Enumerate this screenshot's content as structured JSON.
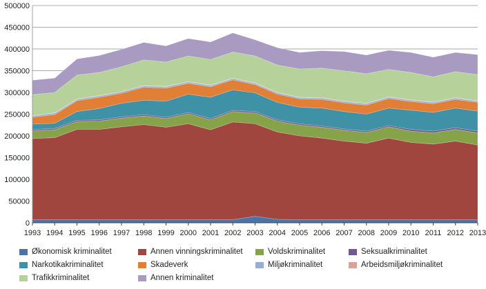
{
  "chart_data": {
    "type": "area",
    "stacked": true,
    "title": "",
    "xlabel": "",
    "ylabel": "",
    "ylim": [
      0,
      500000
    ],
    "y_ticks": [
      "0",
      "50000",
      "100000",
      "150000",
      "200000",
      "250000",
      "300000",
      "350000",
      "400000",
      "450000",
      "500000"
    ],
    "x": [
      "1993",
      "1994",
      "1995",
      "1996",
      "1997",
      "1998",
      "1999",
      "2000",
      "2001",
      "2002",
      "2003",
      "2004",
      "2005",
      "2006",
      "2007",
      "2008",
      "2009",
      "2010",
      "2011",
      "2012",
      "2013"
    ],
    "grid": "horizontal",
    "legend_position": "bottom",
    "series": [
      {
        "name": "Økonomisk kriminalitet",
        "color": "#4a74a8",
        "values": [
          7000,
          7000,
          7000,
          7000,
          7000,
          7000,
          7000,
          7000,
          7000,
          7000,
          15000,
          8000,
          7000,
          7000,
          7000,
          7000,
          7000,
          7000,
          7000,
          7000,
          7000
        ]
      },
      {
        "name": "Annen vinningskriminalitet",
        "color": "#a0463f",
        "values": [
          187000,
          189000,
          208000,
          208000,
          214000,
          219000,
          213000,
          221000,
          207000,
          225000,
          213000,
          201000,
          193000,
          188000,
          181000,
          176000,
          188000,
          178000,
          174000,
          181000,
          172000
        ]
      },
      {
        "name": "Voldskriminalitet",
        "color": "#86a34a",
        "values": [
          18000,
          18000,
          18000,
          19000,
          20000,
          20000,
          20000,
          23000,
          23000,
          24000,
          25000,
          25000,
          25000,
          25000,
          25000,
          25000,
          26000,
          26000,
          26000,
          27000,
          28000
        ]
      },
      {
        "name": "Seksualkriminalitet",
        "color": "#6e5a8e",
        "values": [
          3000,
          3000,
          3000,
          3000,
          3000,
          3000,
          3000,
          3000,
          3000,
          3000,
          3000,
          3000,
          3000,
          3000,
          3000,
          3000,
          3000,
          4000,
          4000,
          4000,
          4000
        ]
      },
      {
        "name": "Narkotikakriminalitet",
        "color": "#3f91a6",
        "values": [
          12000,
          12000,
          20000,
          26000,
          31000,
          33000,
          37000,
          42000,
          49000,
          47000,
          43000,
          40000,
          38000,
          41000,
          40000,
          39000,
          40000,
          44000,
          43000,
          45000,
          46000
        ]
      },
      {
        "name": "Skadeverk",
        "color": "#e07f35",
        "values": [
          16000,
          20000,
          25000,
          26000,
          23000,
          30000,
          30000,
          25000,
          24000,
          23000,
          19000,
          19000,
          19000,
          20000,
          20000,
          21000,
          22000,
          20000,
          20000,
          20000,
          20000
        ]
      },
      {
        "name": "Miljøkriminalitet",
        "color": "#95aed6",
        "values": [
          3000,
          3000,
          3000,
          3000,
          3000,
          3000,
          3000,
          3000,
          3000,
          3000,
          3000,
          3000,
          3000,
          3000,
          3000,
          3000,
          3000,
          3000,
          3000,
          3000,
          3000
        ]
      },
      {
        "name": "Arbeidsmiljøkriminalitet",
        "color": "#d9a29e",
        "values": [
          1000,
          1000,
          1000,
          1000,
          1000,
          1000,
          1000,
          1000,
          1000,
          1000,
          1000,
          1000,
          1000,
          1000,
          1000,
          1000,
          1000,
          1000,
          1000,
          1000,
          1000
        ]
      },
      {
        "name": "Trafikkriminalitet",
        "color": "#b6d19a",
        "values": [
          48000,
          47000,
          55000,
          53000,
          57000,
          59000,
          56000,
          59000,
          59000,
          60000,
          62000,
          63000,
          65000,
          68000,
          70000,
          68000,
          63000,
          63000,
          58000,
          60000,
          60000
        ]
      },
      {
        "name": "Annen kriminalitet",
        "color": "#a99ac2",
        "values": [
          33000,
          33000,
          37000,
          39000,
          40000,
          40000,
          37000,
          40000,
          40000,
          44000,
          37000,
          40000,
          38000,
          40000,
          44000,
          43000,
          44000,
          46000,
          45000,
          44000,
          46000
        ]
      }
    ]
  }
}
